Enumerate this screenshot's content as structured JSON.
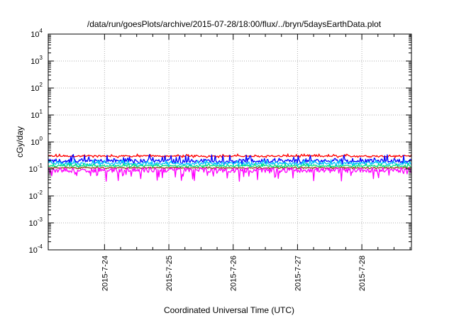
{
  "chart_data": {
    "type": "line",
    "title": "/data/run/goesPlots/archive/2015-07-28/18:00/flux/../bryn/5daysEarthData.plot",
    "xlabel": "Coordinated Universal Time (UTC)",
    "ylabel": "cGy/day",
    "x_start": "2015-07-23T03:00",
    "x_end": "2015-07-28T18:30",
    "x_ticks": [
      "2015-7-24",
      "2015-7-25",
      "2015-7-26",
      "2015-7-27",
      "2015-7-28"
    ],
    "y_scale": "log",
    "ylim": [
      0.0001,
      10000
    ],
    "y_ticks": [
      {
        "base": "10",
        "exp": "-4"
      },
      {
        "base": "10",
        "exp": "-3"
      },
      {
        "base": "10",
        "exp": "-2"
      },
      {
        "base": "10",
        "exp": "-1"
      },
      {
        "base": "10",
        "exp": "0"
      },
      {
        "base": "10",
        "exp": "1"
      },
      {
        "base": "10",
        "exp": "2"
      },
      {
        "base": "10",
        "exp": "3"
      },
      {
        "base": "10",
        "exp": "4"
      }
    ],
    "grid": true,
    "series": [
      {
        "color": "#ff0000",
        "level": 0.3,
        "low": 0.26,
        "high": 0.36
      },
      {
        "color": "#0000ff",
        "level": 0.2,
        "low": 0.15,
        "high": 0.35
      },
      {
        "color": "#00c0ff",
        "level": 0.16,
        "low": 0.12,
        "high": 0.22
      },
      {
        "color": "#00e080",
        "level": 0.13,
        "low": 0.11,
        "high": 0.16
      },
      {
        "color": "#8b4513",
        "level": 0.11,
        "low": 0.1,
        "high": 0.12
      },
      {
        "color": "#ff00ff",
        "level": 0.09,
        "low": 0.035,
        "high": 0.11
      }
    ]
  }
}
